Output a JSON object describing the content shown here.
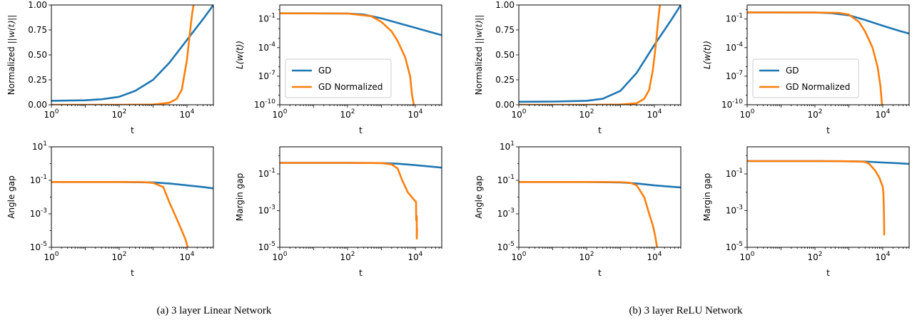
{
  "colors": {
    "gd": "#1f77b4",
    "gd_normalized": "#ff7f0e"
  },
  "captions": [
    "(a) 3 layer Linear Network",
    "(b) 3 layer ReLU Network"
  ],
  "chart_data": [
    {
      "type": "line",
      "group": 0,
      "ylabel": "Normalized ||w(t)||",
      "xlabel": "t",
      "xscale": "log",
      "xlim": [
        1,
        60000
      ],
      "yscale": "linear",
      "ylim": [
        0,
        1
      ],
      "yticks": [
        0,
        0.25,
        0.5,
        0.75,
        1
      ],
      "ytick_labels": [
        "0.00",
        "0.25",
        "0.50",
        "0.75",
        "1.00"
      ],
      "xticks": [
        1,
        100,
        10000
      ],
      "series": [
        {
          "x": [
            1,
            10,
            30,
            100,
            300,
            1000,
            3000,
            10000,
            30000,
            60000
          ],
          "values": [
            0.04,
            0.045,
            0.055,
            0.08,
            0.14,
            0.25,
            0.42,
            0.65,
            0.86,
            1.0
          ]
        },
        {
          "x": [
            1,
            100,
            1000,
            3000,
            5000,
            7000,
            10000,
            12000,
            14000,
            15500
          ],
          "values": [
            0.0,
            0.0,
            0.002,
            0.02,
            0.06,
            0.15,
            0.45,
            0.7,
            0.9,
            1.0
          ]
        }
      ],
      "legend": false
    },
    {
      "type": "line",
      "group": 0,
      "ylabel": "L(w(t))",
      "xlabel": "t",
      "xscale": "log",
      "xlim": [
        1,
        60000
      ],
      "yscale": "log",
      "ylim": [
        1e-10,
        3
      ],
      "yticks": [
        1e-10,
        1e-07,
        0.0001,
        0.1
      ],
      "xticks": [
        1,
        100,
        10000
      ],
      "series": [
        {
          "name": "GD",
          "x": [
            1,
            10,
            100,
            300,
            1000,
            3000,
            10000,
            30000,
            60000
          ],
          "values": [
            0.4,
            0.4,
            0.38,
            0.3,
            0.12,
            0.04,
            0.012,
            0.004,
            0.002
          ]
        },
        {
          "name": "GD Normalized",
          "x": [
            1,
            100,
            500,
            1000,
            2000,
            3000,
            5000,
            7000,
            8000,
            9000
          ],
          "values": [
            0.4,
            0.38,
            0.2,
            0.05,
            0.005,
            0.0005,
            1e-05,
            1e-07,
            1e-09,
            1e-10
          ]
        }
      ],
      "legend": true,
      "legend_loc": "lower-left"
    },
    {
      "type": "line",
      "group": 0,
      "ylabel": "Angle gap",
      "xlabel": "t",
      "xscale": "log",
      "xlim": [
        1,
        60000
      ],
      "yscale": "log",
      "ylim": [
        1e-05,
        10
      ],
      "yticks": [
        1e-05,
        0.001,
        0.1,
        10
      ],
      "xticks": [
        1,
        100,
        10000
      ],
      "series": [
        {
          "x": [
            1,
            10,
            100,
            1000,
            3000,
            10000,
            30000,
            60000
          ],
          "values": [
            0.08,
            0.08,
            0.08,
            0.075,
            0.065,
            0.05,
            0.04,
            0.033
          ]
        },
        {
          "x": [
            1,
            100,
            500,
            1000,
            2000,
            3000,
            5000,
            7000,
            9000,
            10500
          ],
          "values": [
            0.08,
            0.08,
            0.078,
            0.07,
            0.04,
            0.005,
            0.0005,
            0.0001,
            3e-05,
            1e-05
          ]
        }
      ],
      "legend": false
    },
    {
      "type": "line",
      "group": 0,
      "ylabel": "Margin gap",
      "xlabel": "t",
      "xscale": "log",
      "xlim": [
        1,
        60000
      ],
      "yscale": "log",
      "ylim": [
        1e-05,
        3
      ],
      "yticks": [
        1e-05,
        0.001,
        0.1
      ],
      "xticks": [
        1,
        100,
        10000
      ],
      "series": [
        {
          "x": [
            1,
            100,
            1000,
            3000,
            10000,
            30000,
            60000
          ],
          "values": [
            0.4,
            0.4,
            0.39,
            0.36,
            0.3,
            0.25,
            0.22
          ]
        },
        {
          "x": [
            1,
            100,
            1000,
            2000,
            3000,
            4000,
            6000,
            9000,
            10500,
            10600,
            11000,
            11000,
            11200
          ],
          "values": [
            0.4,
            0.4,
            0.39,
            0.33,
            0.2,
            0.05,
            0.01,
            0.004,
            0.003,
            0.0003,
            0.0005,
            3e-05,
            0.0001
          ]
        }
      ],
      "legend": false
    },
    {
      "type": "line",
      "group": 1,
      "ylabel": "Normalized ||w(t)||",
      "xlabel": "t",
      "xscale": "log",
      "xlim": [
        1,
        60000
      ],
      "yscale": "linear",
      "ylim": [
        0,
        1
      ],
      "yticks": [
        0,
        0.25,
        0.5,
        0.75,
        1
      ],
      "ytick_labels": [
        "0.00",
        "0.25",
        "0.50",
        "0.75",
        "1.00"
      ],
      "xticks": [
        1,
        100,
        10000
      ],
      "series": [
        {
          "x": [
            1,
            10,
            100,
            300,
            1000,
            3000,
            10000,
            30000,
            60000
          ],
          "values": [
            0.03,
            0.032,
            0.04,
            0.06,
            0.14,
            0.32,
            0.6,
            0.84,
            1.0
          ]
        },
        {
          "x": [
            1,
            100,
            1000,
            3000,
            5000,
            7000,
            9000,
            11000,
            13000,
            14500
          ],
          "values": [
            0.0,
            0.0,
            0.002,
            0.015,
            0.06,
            0.15,
            0.35,
            0.6,
            0.85,
            1.0
          ]
        }
      ],
      "legend": false
    },
    {
      "type": "line",
      "group": 1,
      "ylabel": "L(w(t))",
      "xlabel": "t",
      "xscale": "log",
      "xlim": [
        1,
        60000
      ],
      "yscale": "log",
      "ylim": [
        1e-10,
        3
      ],
      "yticks": [
        1e-10,
        1e-07,
        0.0001,
        0.1
      ],
      "xticks": [
        1,
        100,
        10000
      ],
      "series": [
        {
          "name": "GD",
          "x": [
            1,
            10,
            100,
            300,
            1000,
            3000,
            10000,
            30000,
            60000
          ],
          "values": [
            0.5,
            0.5,
            0.48,
            0.42,
            0.25,
            0.08,
            0.02,
            0.006,
            0.003
          ]
        },
        {
          "name": "GD Normalized",
          "x": [
            1,
            100,
            500,
            1000,
            2000,
            3000,
            5000,
            7000,
            8500,
            9500
          ],
          "values": [
            0.5,
            0.48,
            0.45,
            0.3,
            0.05,
            0.005,
            0.0001,
            1e-06,
            1e-08,
            1e-10
          ]
        }
      ],
      "legend": true,
      "legend_loc": "lower-left"
    },
    {
      "type": "line",
      "group": 1,
      "ylabel": "Angle gap",
      "xlabel": "t",
      "xscale": "log",
      "xlim": [
        1,
        60000
      ],
      "yscale": "log",
      "ylim": [
        1e-05,
        10
      ],
      "yticks": [
        1e-05,
        0.001,
        0.1,
        10
      ],
      "xticks": [
        1,
        100,
        10000
      ],
      "series": [
        {
          "x": [
            1,
            10,
            100,
            1000,
            3000,
            10000,
            30000,
            60000
          ],
          "values": [
            0.08,
            0.08,
            0.08,
            0.075,
            0.065,
            0.05,
            0.042,
            0.038
          ]
        },
        {
          "x": [
            1,
            100,
            1000,
            2000,
            3000,
            5000,
            7000,
            9000,
            10500,
            12000
          ],
          "values": [
            0.08,
            0.08,
            0.078,
            0.07,
            0.05,
            0.01,
            0.001,
            0.0002,
            5e-05,
            1e-05
          ]
        }
      ],
      "legend": false
    },
    {
      "type": "line",
      "group": 1,
      "ylabel": "Margin gap",
      "xlabel": "t",
      "xscale": "log",
      "xlim": [
        1,
        60000
      ],
      "yscale": "log",
      "ylim": [
        1e-05,
        3
      ],
      "yticks": [
        1e-05,
        0.001,
        0.1
      ],
      "xticks": [
        1,
        100,
        10000
      ],
      "series": [
        {
          "x": [
            1,
            100,
            1000,
            3000,
            10000,
            30000,
            60000
          ],
          "values": [
            0.5,
            0.5,
            0.49,
            0.47,
            0.42,
            0.38,
            0.35
          ]
        },
        {
          "x": [
            1,
            100,
            1000,
            2000,
            3000,
            4000,
            6000,
            8000,
            10000,
            10500,
            10800,
            11000,
            11000
          ],
          "values": [
            0.5,
            0.5,
            0.49,
            0.47,
            0.45,
            0.35,
            0.15,
            0.06,
            0.02,
            0.008,
            0.001,
            0.0001,
            5e-05
          ]
        }
      ],
      "legend": false
    }
  ]
}
